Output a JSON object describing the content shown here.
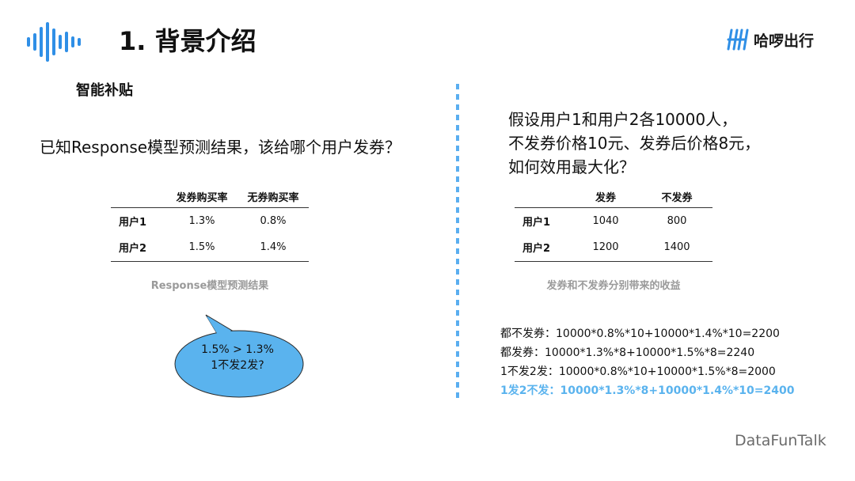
{
  "header": {
    "title": "1. 背景介绍",
    "brand_name": "哈啰出行",
    "logo_icon": "sound-wave-icon",
    "brand_icon": "hello-logo-icon",
    "accent_color": "#2f8fe6"
  },
  "left": {
    "subtitle": "智能补贴",
    "question": "已知Response模型预测结果，该给哪个用户发券？",
    "table": {
      "headers": [
        "",
        "发券购买率",
        "无券购买率"
      ],
      "rows": [
        [
          "用户1",
          "1.3%",
          "0.8%"
        ],
        [
          "用户2",
          "1.5%",
          "1.4%"
        ]
      ]
    },
    "caption": "Response模型预测结果",
    "bubble": {
      "line1": "1.5% > 1.3%",
      "line2": "1不发2发?",
      "color": "#5ab3ee"
    }
  },
  "right": {
    "question_lines": [
      "假设用户1和用户2各10000人，",
      "不发券价格10元、发券后价格8元，",
      "如何效用最大化？"
    ],
    "table": {
      "headers": [
        "",
        "发券",
        "不发券"
      ],
      "rows": [
        [
          "用户1",
          "1040",
          "800"
        ],
        [
          "用户2",
          "1200",
          "1400"
        ]
      ]
    },
    "caption": "发券和不发券分别带来的收益",
    "calculations": [
      "都不发券：10000*0.8%*10+10000*1.4%*10=2200",
      "都发券：10000*1.3%*8+10000*1.5%*8=2240",
      "1不发2发：10000*0.8%*10+10000*1.5%*8=2000",
      "1发2不发：10000*1.3%*8+10000*1.4%*10=2400"
    ],
    "highlight_color": "#5ab3ee"
  },
  "footer": {
    "watermark": "DataFunTalk"
  }
}
